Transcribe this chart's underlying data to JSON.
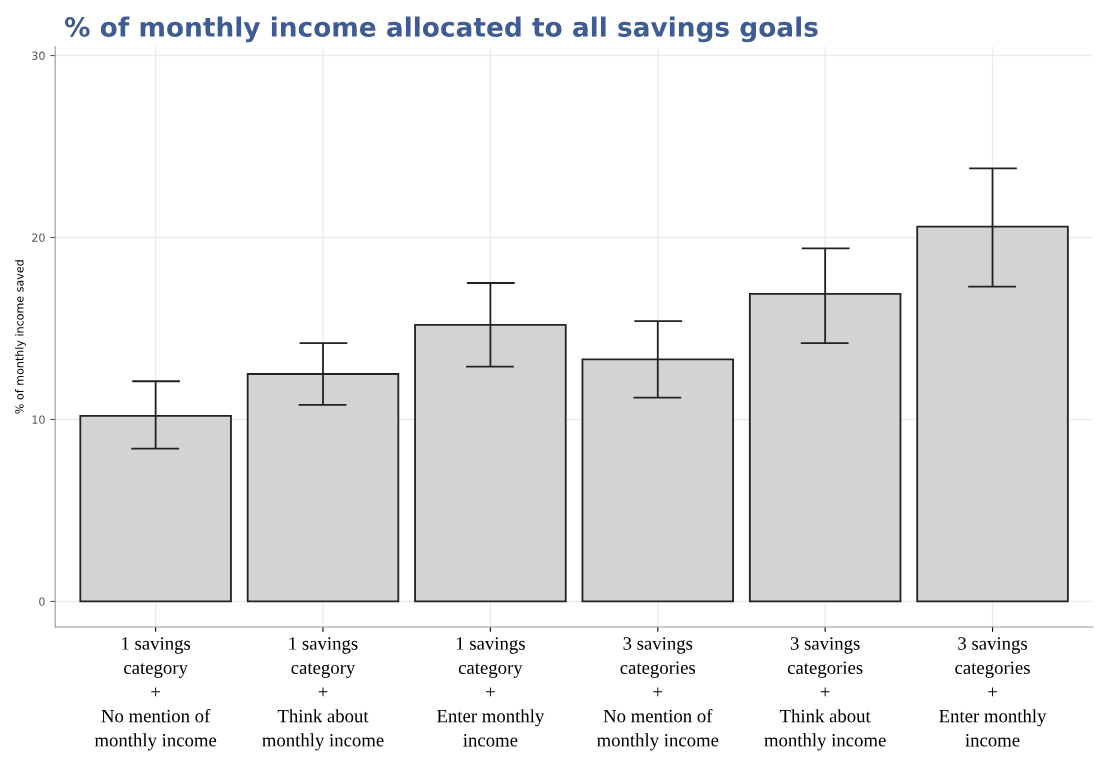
{
  "chart_data": {
    "type": "bar",
    "title": "% of monthly income allocated to all savings goals",
    "ylabel": "% of monthly income saved",
    "categories": [
      "1 savings\ncategory\n+\nNo mention of\nmonthly income",
      "1 savings\ncategory\n+\nThink about\nmonthly income",
      "1 savings\ncategory\n+\nEnter monthly\nincome",
      "3 savings\ncategories\n+\nNo mention of\nmonthly income",
      "3 savings\ncategories\n+\nThink about\nmonthly income",
      "3 savings\ncategories\n+\nEnter monthly\nincome"
    ],
    "values": [
      10.2,
      12.5,
      15.2,
      13.3,
      16.9,
      20.6
    ],
    "errors": [
      [
        8.4,
        12.1
      ],
      [
        10.8,
        14.2
      ],
      [
        12.9,
        17.5
      ],
      [
        11.2,
        15.4
      ],
      [
        14.2,
        19.4
      ],
      [
        17.3,
        23.8
      ]
    ],
    "color": "#d3d3d3",
    "ylim": [
      -1.4,
      30.5
    ],
    "yticks": [
      0,
      10,
      20,
      30
    ],
    "grid": true
  }
}
